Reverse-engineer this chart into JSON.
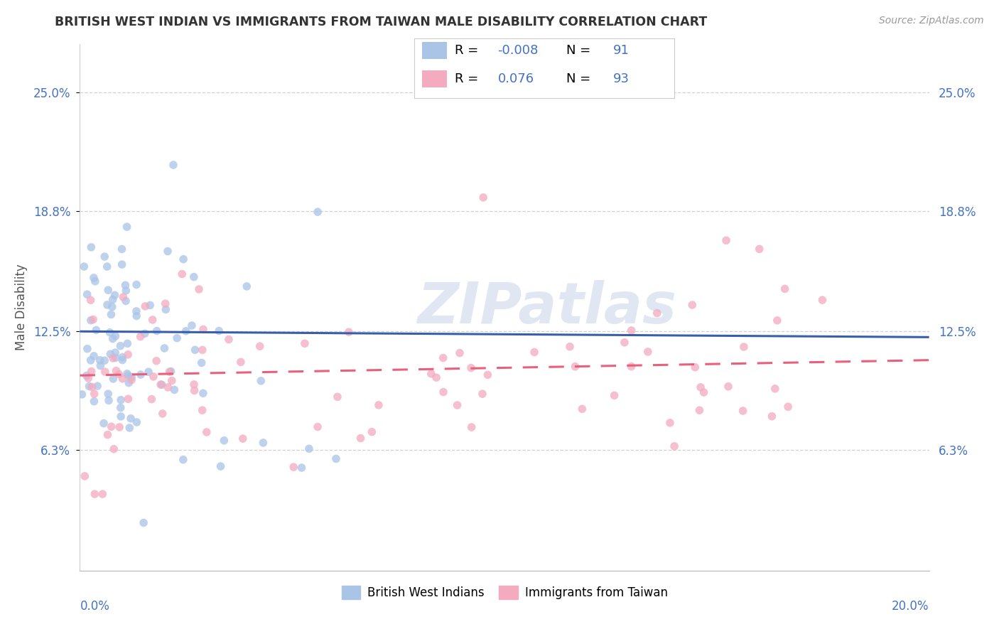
{
  "title": "BRITISH WEST INDIAN VS IMMIGRANTS FROM TAIWAN MALE DISABILITY CORRELATION CHART",
  "source_text": "Source: ZipAtlas.com",
  "ylabel": "Male Disability",
  "ytick_labels": [
    "6.3%",
    "12.5%",
    "18.8%",
    "25.0%"
  ],
  "ytick_values": [
    6.3,
    12.5,
    18.8,
    25.0
  ],
  "xlim": [
    0.0,
    20.0
  ],
  "ylim": [
    0.0,
    27.5
  ],
  "blue_scatter_color": "#aac4e8",
  "pink_scatter_color": "#f4aabf",
  "blue_line_color": "#3a5faa",
  "pink_line_color": "#e8607a",
  "watermark_text": "ZIPatlas",
  "blue_N": 91,
  "pink_N": 93,
  "blue_R_display": "-0.008",
  "pink_R_display": "0.076",
  "blue_N_display": "91",
  "pink_N_display": "93",
  "blue_line_start_y": 12.5,
  "blue_line_end_y": 12.2,
  "pink_line_start_y": 10.2,
  "pink_line_end_y": 11.0,
  "background_color": "#ffffff",
  "grid_color": "#cccccc",
  "title_color": "#333333",
  "axis_color": "#4472c4",
  "legend_r_eq_color": "#000000",
  "legend_val_color": "#4472c4",
  "seed": 7
}
